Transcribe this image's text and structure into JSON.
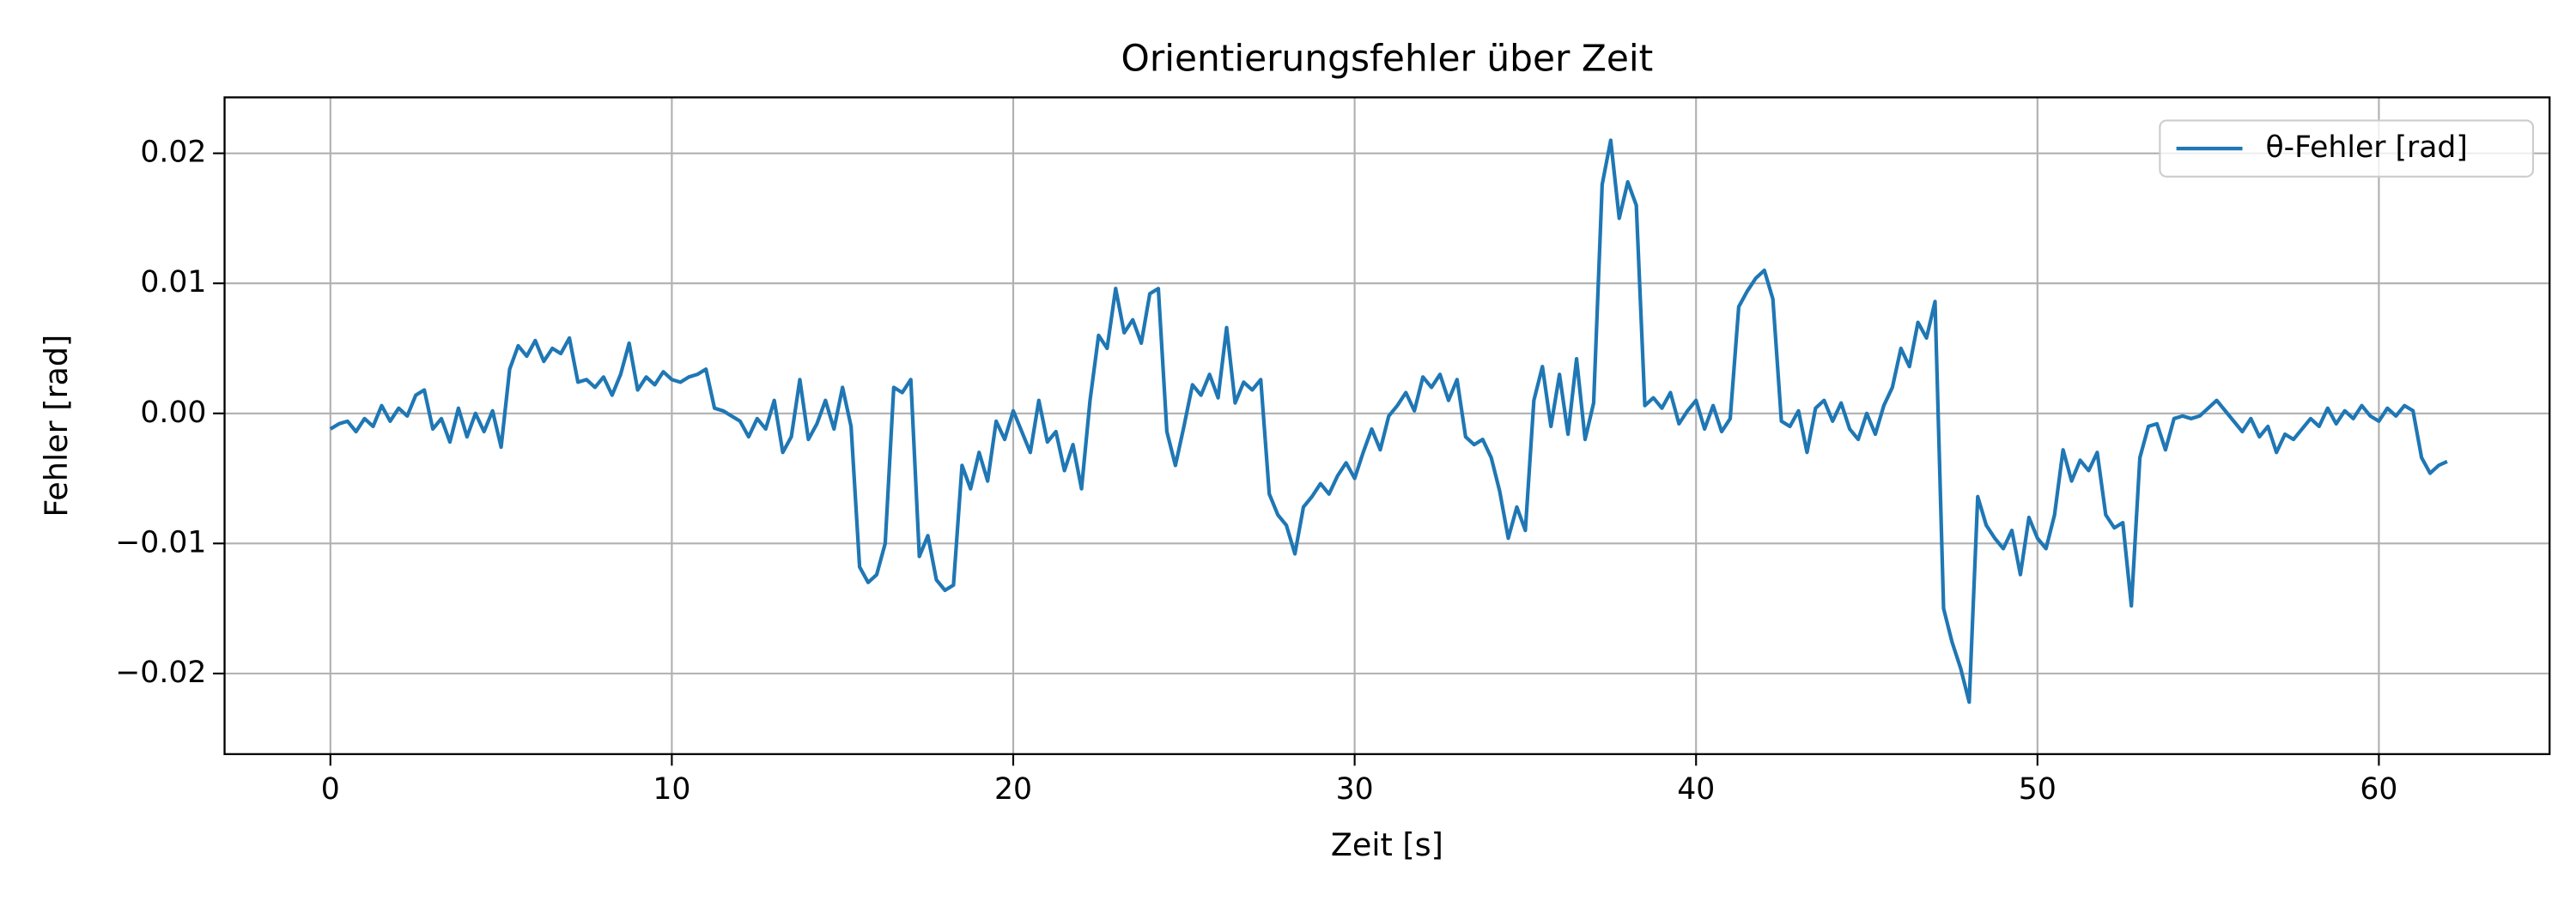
{
  "chart_data": {
    "type": "line",
    "title": "Orientierungsfehler über Zeit",
    "x_label": "Zeit [s]",
    "y_label": "Fehler [rad]",
    "xlim": [
      -3.1,
      65
    ],
    "ylim": [
      -0.0262,
      0.0243
    ],
    "xticks": [
      0,
      10,
      20,
      30,
      40,
      50,
      60
    ],
    "yticks": [
      {
        "value": -0.02,
        "label": "−0.02"
      },
      {
        "value": -0.01,
        "label": "−0.01"
      },
      {
        "value": 0,
        "label": "0.00"
      },
      0.01,
      0.02
    ],
    "grid": true,
    "legend": "upper right",
    "x": [
      0,
      0.25,
      0.5,
      0.75,
      1,
      1.25,
      1.5,
      1.75,
      2,
      2.25,
      2.5,
      2.75,
      3,
      3.25,
      3.5,
      3.75,
      4,
      4.25,
      4.5,
      4.75,
      5,
      5.25,
      5.5,
      5.75,
      6,
      6.25,
      6.5,
      6.75,
      7,
      7.25,
      7.5,
      7.75,
      8,
      8.25,
      8.5,
      8.75,
      9,
      9.25,
      9.5,
      9.75,
      10,
      10.25,
      10.5,
      10.75,
      11,
      11.25,
      11.5,
      11.75,
      12,
      12.25,
      12.5,
      12.75,
      13,
      13.25,
      13.5,
      13.75,
      14,
      14.25,
      14.5,
      14.75,
      15,
      15.25,
      15.5,
      15.75,
      16,
      16.25,
      16.5,
      16.75,
      17,
      17.25,
      17.5,
      17.75,
      18,
      18.25,
      18.5,
      18.75,
      19,
      19.25,
      19.5,
      19.75,
      20,
      20.25,
      20.5,
      20.75,
      21,
      21.25,
      21.5,
      21.75,
      22,
      22.25,
      22.5,
      22.75,
      23,
      23.25,
      23.5,
      23.75,
      24,
      24.25,
      24.5,
      24.75,
      25,
      25.25,
      25.5,
      25.75,
      26,
      26.25,
      26.5,
      26.75,
      27,
      27.25,
      27.5,
      27.75,
      28,
      28.25,
      28.5,
      28.75,
      29,
      29.25,
      29.5,
      29.75,
      30,
      30.25,
      30.5,
      30.75,
      31,
      31.25,
      31.5,
      31.75,
      32,
      32.25,
      32.5,
      32.75,
      33,
      33.25,
      33.5,
      33.75,
      34,
      34.25,
      34.5,
      34.75,
      35,
      35.25,
      35.5,
      35.75,
      36,
      36.25,
      36.5,
      36.75,
      37,
      37.25,
      37.5,
      37.75,
      38,
      38.25,
      38.5,
      38.75,
      39,
      39.25,
      39.5,
      39.75,
      40,
      40.25,
      40.5,
      40.75,
      41,
      41.25,
      41.5,
      41.75,
      42,
      42.25,
      42.5,
      42.75,
      43,
      43.25,
      43.5,
      43.75,
      44,
      44.25,
      44.5,
      44.75,
      45,
      45.25,
      45.5,
      45.75,
      46,
      46.25,
      46.5,
      46.75,
      47,
      47.25,
      47.5,
      47.75,
      48,
      48.25,
      48.5,
      48.75,
      49,
      49.25,
      49.5,
      49.75,
      50,
      50.25,
      50.5,
      50.75,
      51,
      51.25,
      51.5,
      51.75,
      52,
      52.25,
      52.5,
      52.75,
      53,
      53.25,
      53.5,
      53.75,
      54,
      54.25,
      54.5,
      54.75,
      55,
      55.25,
      55.5,
      55.75,
      56,
      56.25,
      56.5,
      56.75,
      57,
      57.25,
      57.5,
      57.75,
      58,
      58.25,
      58.5,
      58.75,
      59,
      59.25,
      59.5,
      59.75,
      60,
      60.25,
      60.5,
      60.75,
      61,
      61.25,
      61.5,
      61.75,
      62
    ],
    "series": [
      {
        "name": "θ-Fehler [rad]",
        "color": "#1f77b4",
        "values": [
          -0.0012,
          -0.0008,
          -0.0006,
          -0.0014,
          -0.0004,
          -0.001,
          0.0006,
          -0.0006,
          0.0004,
          -0.0002,
          0.0014,
          0.0018,
          -0.0012,
          -0.0004,
          -0.0022,
          0.0004,
          -0.0018,
          0.0,
          -0.0014,
          0.0002,
          -0.0026,
          0.0034,
          0.0052,
          0.0044,
          0.0056,
          0.004,
          0.005,
          0.0046,
          0.0058,
          0.0024,
          0.0026,
          0.002,
          0.0028,
          0.0014,
          0.003,
          0.0054,
          0.0018,
          0.0028,
          0.0022,
          0.0032,
          0.0026,
          0.0024,
          0.0028,
          0.003,
          0.0034,
          0.0004,
          0.0002,
          -0.0002,
          -0.0006,
          -0.0018,
          -0.0004,
          -0.0012,
          0.001,
          -0.003,
          -0.0018,
          0.0026,
          -0.002,
          -0.0008,
          0.001,
          -0.0012,
          0.002,
          -0.001,
          -0.0118,
          -0.013,
          -0.0124,
          -0.01,
          0.002,
          0.0016,
          0.0026,
          -0.011,
          -0.0094,
          -0.0128,
          -0.0136,
          -0.0132,
          -0.004,
          -0.0058,
          -0.003,
          -0.0052,
          -0.0006,
          -0.002,
          0.0002,
          -0.0014,
          -0.003,
          0.001,
          -0.0022,
          -0.0014,
          -0.0044,
          -0.0024,
          -0.0058,
          0.001,
          0.006,
          0.005,
          0.0096,
          0.0062,
          0.0072,
          0.0054,
          0.0092,
          0.0096,
          -0.0014,
          -0.004,
          -0.001,
          0.0022,
          0.0014,
          0.003,
          0.0012,
          0.0066,
          0.0008,
          0.0024,
          0.0018,
          0.0026,
          -0.0062,
          -0.0078,
          -0.0086,
          -0.0108,
          -0.0072,
          -0.0064,
          -0.0054,
          -0.0062,
          -0.0048,
          -0.0038,
          -0.005,
          -0.003,
          -0.0012,
          -0.0028,
          -0.0002,
          0.0006,
          0.0016,
          0.0002,
          0.0028,
          0.002,
          0.003,
          0.001,
          0.0026,
          -0.0018,
          -0.0024,
          -0.002,
          -0.0034,
          -0.006,
          -0.0096,
          -0.0072,
          -0.009,
          0.001,
          0.0036,
          -0.001,
          0.003,
          -0.0016,
          0.0042,
          -0.002,
          0.0008,
          0.0176,
          0.021,
          0.015,
          0.0178,
          0.016,
          0.0006,
          0.0012,
          0.0004,
          0.0016,
          -0.0008,
          0.0002,
          0.001,
          -0.0012,
          0.0006,
          -0.0014,
          -0.0004,
          0.0082,
          0.0094,
          0.0104,
          0.011,
          0.0088,
          -0.0006,
          -0.001,
          0.0002,
          -0.003,
          0.0004,
          0.001,
          -0.0006,
          0.0008,
          -0.0012,
          -0.002,
          0.0,
          -0.0016,
          0.0006,
          0.002,
          0.005,
          0.0036,
          0.007,
          0.0058,
          0.0086,
          -0.015,
          -0.0176,
          -0.0196,
          -0.0222,
          -0.0064,
          -0.0086,
          -0.0096,
          -0.0104,
          -0.009,
          -0.0124,
          -0.008,
          -0.0096,
          -0.0104,
          -0.0078,
          -0.0028,
          -0.0052,
          -0.0036,
          -0.0044,
          -0.003,
          -0.0078,
          -0.0088,
          -0.0084,
          -0.0148,
          -0.0034,
          -0.001,
          -0.0008,
          -0.0028,
          -0.0004,
          -0.0002,
          -0.0004,
          -0.0002,
          0.0004,
          0.001,
          0.0002,
          -0.0006,
          -0.0014,
          -0.0004,
          -0.0018,
          -0.001,
          -0.003,
          -0.0016,
          -0.002,
          -0.0012,
          -0.0004,
          -0.001,
          0.0004,
          -0.0008,
          0.0002,
          -0.0004,
          0.0006,
          -0.0002,
          -0.0006,
          0.0004,
          -0.0002,
          0.0006,
          0.0002,
          -0.0034,
          -0.0046,
          -0.004,
          -0.0037
        ]
      }
    ]
  }
}
